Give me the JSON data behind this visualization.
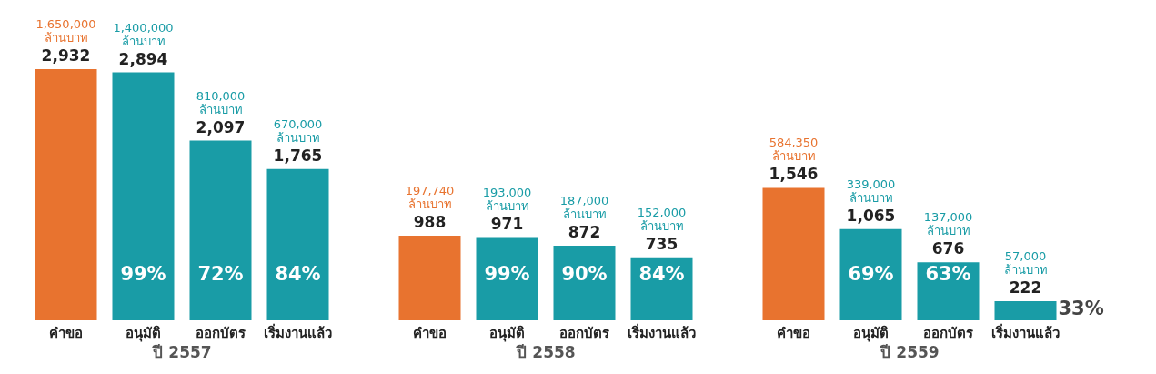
{
  "chart_data": [
    {
      "type": "bar",
      "xlabel": "ปี 2557",
      "categories": [
        "คำขอ",
        "อนุมัติ",
        "ออกบัตร",
        "เริ่มงานแล้ว"
      ],
      "values": [
        2932,
        2894,
        2097,
        1765
      ],
      "colors": [
        "#e8732f",
        "#199ca6",
        "#199ca6",
        "#199ca6"
      ],
      "value_labels": [
        "2,932",
        "2,894",
        "2,097",
        "1,765"
      ],
      "tick_labels": "x",
      "annotations": [
        "1,650,000 ล้านบาท",
        "1,400,000 ล้านบาท",
        "810,000 ล้านบาท",
        "670,000 ล้านบาท",
        "99%",
        "72%",
        "84%"
      ]
    },
    {
      "type": "bar",
      "xlabel": "ปี 2558",
      "categories": [
        "คำขอ",
        "อนุมัติ",
        "ออกบัตร",
        "เริ่มงานแล้ว"
      ],
      "values": [
        988,
        971,
        872,
        735
      ],
      "colors": [
        "#e8732f",
        "#199ca6",
        "#199ca6",
        "#199ca6"
      ],
      "value_labels": [
        "988",
        "971",
        "872",
        "735"
      ],
      "tick_labels": "x",
      "annotations": [
        "197,740 ล้านบาท",
        "193,000 ล้านบาท",
        "187,000 ล้านบาท",
        "152,000 ล้านบาท",
        "99%",
        "90%",
        "84%"
      ]
    },
    {
      "type": "bar",
      "xlabel": "ปี 2559",
      "categories": [
        "คำขอ",
        "อนุมัติ",
        "ออกบัตร",
        "เริ่มงานแล้ว"
      ],
      "values": [
        1546,
        1065,
        676,
        222
      ],
      "colors": [
        "#e8732f",
        "#199ca6",
        "#199ca6",
        "#199ca6"
      ],
      "value_labels": [
        "1,546",
        "1,065",
        "676",
        "222"
      ],
      "tick_labels": "x",
      "annotations": [
        "584,350 ล้านบาท",
        "339,000 ล้านบาท",
        "137,000 ล้านบาท",
        "57,000 ล้านบาท",
        "69%",
        "63%",
        "33%"
      ]
    }
  ]
}
